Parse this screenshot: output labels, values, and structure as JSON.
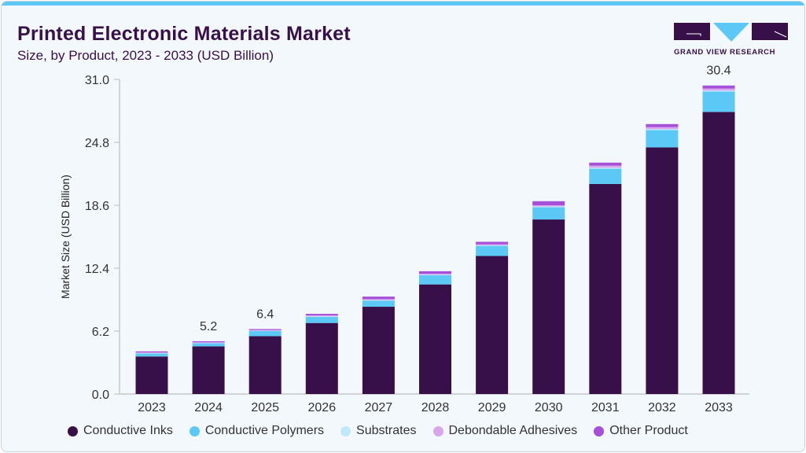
{
  "title": "Printed Electronic Materials Market",
  "subtitle": "Size, by Product, 2023 - 2033 (USD Billion)",
  "logo": {
    "text": "GRAND VIEW RESEARCH",
    "colors": [
      "#37104a",
      "#5bc8f5"
    ]
  },
  "chart_data": {
    "type": "bar",
    "stacked": true,
    "title": "Printed Electronic Materials Market",
    "ylabel": "Market Size (USD Billion)",
    "xlabel": "",
    "ylim": [
      0,
      31
    ],
    "yticks": [
      "0.0",
      "6.2",
      "12.4",
      "18.6",
      "24.8",
      "31.0"
    ],
    "grid": false,
    "legend_position": "bottom",
    "categories": [
      "2023",
      "2024",
      "2025",
      "2026",
      "2027",
      "2028",
      "2029",
      "2030",
      "2031",
      "2032",
      "2033"
    ],
    "series": [
      {
        "name": "Conductive Inks",
        "color": "#37104a",
        "values": [
          3.7,
          4.7,
          5.7,
          7.0,
          8.6,
          10.8,
          13.6,
          17.2,
          20.7,
          24.3,
          27.8
        ]
      },
      {
        "name": "Conductive Polymers",
        "color": "#5bc8f5",
        "values": [
          0.3,
          0.3,
          0.5,
          0.6,
          0.6,
          0.9,
          1.0,
          1.2,
          1.5,
          1.7,
          2.0
        ]
      },
      {
        "name": "Substrates",
        "color": "#bfe9fb",
        "values": [
          0.03,
          0.03,
          0.03,
          0.05,
          0.05,
          0.05,
          0.05,
          0.08,
          0.1,
          0.1,
          0.1
        ]
      },
      {
        "name": "Debondable Adhesives",
        "color": "#d9a6ee",
        "values": [
          0.07,
          0.07,
          0.07,
          0.1,
          0.1,
          0.1,
          0.1,
          0.12,
          0.2,
          0.2,
          0.2
        ]
      },
      {
        "name": "Other Product",
        "color": "#a64fd9",
        "values": [
          0.1,
          0.1,
          0.1,
          0.15,
          0.25,
          0.25,
          0.25,
          0.4,
          0.3,
          0.3,
          0.3
        ]
      }
    ],
    "annotations": [
      {
        "category": "2024",
        "label": "5.2"
      },
      {
        "category": "2025",
        "label": "6.4"
      },
      {
        "category": "2033",
        "label": "30.4"
      }
    ]
  }
}
